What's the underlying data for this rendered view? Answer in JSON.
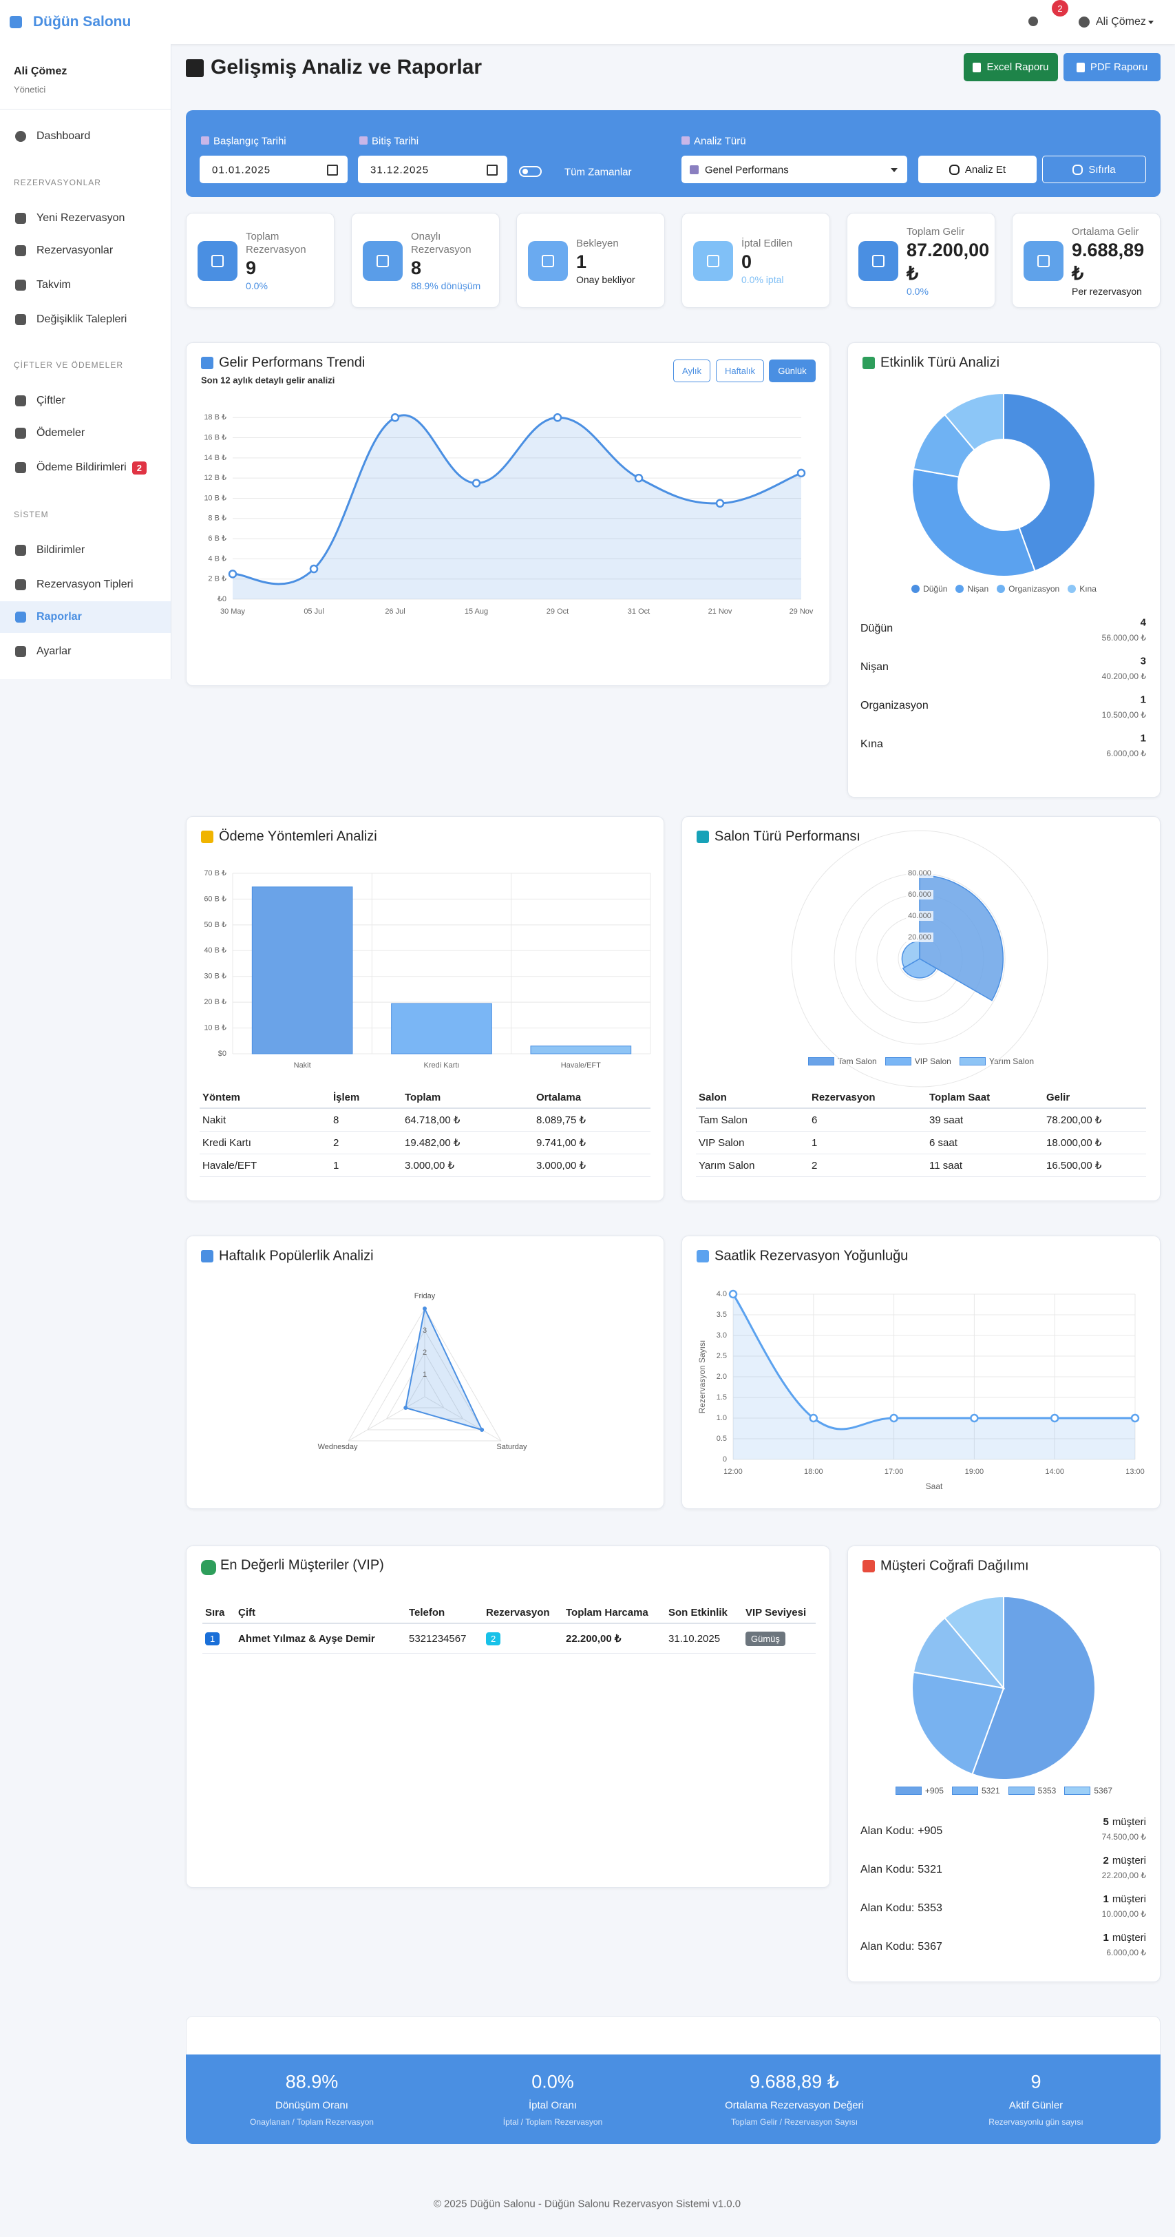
{
  "navbar": {
    "brand": "Düğün Salonu",
    "notifications": 2,
    "user": "Ali Çömez"
  },
  "sidebar": {
    "user_name": "Ali Çömez",
    "user_role": "Yönetici",
    "home": "Dashboard",
    "sections": [
      {
        "title": "REZERVASYONLAR",
        "items": [
          {
            "label": "Yeni Rezervasyon"
          },
          {
            "label": "Rezervasyonlar"
          },
          {
            "label": "Takvim"
          },
          {
            "label": "Değişiklik Talepleri"
          }
        ]
      },
      {
        "title": "ÇİFTLER VE ÖDEMELER",
        "items": [
          {
            "label": "Çiftler"
          },
          {
            "label": "Ödemeler"
          },
          {
            "label": "Ödeme Bildirimleri",
            "badge": 2
          }
        ]
      },
      {
        "title": "SİSTEM",
        "items": [
          {
            "label": "Bildirimler"
          },
          {
            "label": "Rezervasyon Tipleri"
          },
          {
            "label": "Raporlar",
            "active": true
          },
          {
            "label": "Ayarlar"
          }
        ]
      }
    ]
  },
  "header": {
    "title": "Gelişmiş Analiz ve Raporlar",
    "buttons": [
      "Excel Raporu",
      "PDF Raporu"
    ]
  },
  "filters": {
    "start_label": "Başlangıç Tarihi",
    "start": "01.01.2025",
    "end_label": "Bitiş Tarihi",
    "end": "31.12.2025",
    "all_time": "Tüm Zamanlar",
    "type_label": "Analiz Türü",
    "type": "Genel Performans",
    "analyze": "Analiz Et",
    "reset": "Sıfırla"
  },
  "stats": [
    {
      "label": "Toplam Rezervasyon",
      "value": 9,
      "note": "0.0%"
    },
    {
      "label": "Onaylı Rezervasyon",
      "value": 8,
      "note": "88.9% dönüşüm"
    },
    {
      "label": "Bekleyen",
      "value": 1,
      "note": "Onay bekliyor"
    },
    {
      "label": "İptal Edilen",
      "value": 0,
      "note": "0.0% iptal"
    },
    {
      "label": "Toplam Gelir",
      "value": "87.200,00 ₺",
      "note": "0.0%"
    },
    {
      "label": "Ortalama Gelir",
      "value": "9.688,89 ₺",
      "note": "Per rezervasyon"
    }
  ],
  "chart_data": [
    {
      "type": "line",
      "title": "Gelir Performans Trendi",
      "subtitle": "Son 12 aylık detaylı gelir analizi",
      "buttons": [
        "Aylık",
        "Haftalık",
        "Günlük"
      ],
      "active_button": 2,
      "categories": [
        "30 May",
        "05 Jul",
        "26 Jul",
        "15 Aug",
        "29 Oct",
        "31 Oct",
        "21 Nov",
        "29 Nov"
      ],
      "values": [
        2500,
        3000,
        18000,
        11500,
        18000,
        12000,
        9500,
        12500
      ],
      "color": "#4a8fe2",
      "fill": true,
      "ylim": [
        0,
        18700
      ],
      "yticks": [
        {
          "value": 0,
          "label": "₺0"
        },
        {
          "value": 2000,
          "label": "2 B ₺"
        },
        {
          "value": 4000,
          "label": "4 B ₺"
        },
        {
          "value": 6000,
          "label": "6 B ₺"
        },
        {
          "value": 8000,
          "label": "8 B ₺"
        },
        {
          "value": 10000,
          "label": "10 B ₺"
        },
        {
          "value": 12000,
          "label": "12 B ₺"
        },
        {
          "value": 14000,
          "label": "14 B ₺"
        },
        {
          "value": 16000,
          "label": "16 B ₺"
        },
        {
          "value": 18000,
          "label": "18 B ₺"
        }
      ],
      "grid": true,
      "xgrid": false
    },
    {
      "type": "doughnut",
      "title": "Etkinlik Türü Analizi",
      "categories": [
        "Düğün",
        "Nişan",
        "Organizasyon",
        "Kına"
      ],
      "values": [
        4,
        3,
        1,
        1
      ],
      "colors": [
        "#4a8fe2",
        "#5ba2ef",
        "#6fb2f3",
        "#8cc6f7"
      ],
      "revenue_labels": [
        "56.000,00 ₺",
        "40.200,00 ₺",
        "10.500,00 ₺",
        "6.000,00 ₺"
      ]
    },
    {
      "type": "bar",
      "title": "Ödeme Yöntemleri Analizi",
      "categories": [
        "Nakit",
        "Kredi Kartı",
        "Havale/EFT"
      ],
      "values": [
        64718,
        19482,
        3000
      ],
      "colors": [
        "#6aa3e8",
        "#7ab6f5",
        "#8ec4f5"
      ],
      "ylim": [
        0,
        70000
      ],
      "yticks": [
        {
          "value": 0,
          "label": "$0"
        },
        {
          "value": 10000,
          "label": "10 B ₺"
        },
        {
          "value": 20000,
          "label": "20 B ₺"
        },
        {
          "value": 30000,
          "label": "30 B ₺"
        },
        {
          "value": 40000,
          "label": "40 B ₺"
        },
        {
          "value": 50000,
          "label": "50 B ₺"
        },
        {
          "value": 60000,
          "label": "60 B ₺"
        },
        {
          "value": 70000,
          "label": "70 B ₺"
        }
      ],
      "grid": true,
      "table": {
        "headers": [
          "Yöntem",
          "İşlem",
          "Toplam",
          "Ortalama"
        ],
        "rows": [
          [
            "Nakit",
            "8",
            "64.718,00 ₺",
            "8.089,75 ₺"
          ],
          [
            "Kredi Kartı",
            "2",
            "19.482,00 ₺",
            "9.741,00 ₺"
          ],
          [
            "Havale/EFT",
            "1",
            "3.000,00 ₺",
            "3.000,00 ₺"
          ]
        ]
      }
    },
    {
      "type": "polar",
      "title": "Salon Türü Performansı",
      "categories": [
        "Tam Salon",
        "VIP Salon",
        "Yarım Salon"
      ],
      "values": [
        78200,
        18000,
        16500
      ],
      "colors": [
        "#6aa3e8",
        "#7ab6f5",
        "#8ec4f5"
      ],
      "rlim": [
        0,
        120000
      ],
      "rticks": [
        {
          "value": 20000,
          "label": "20.000"
        },
        {
          "value": 40000,
          "label": "40.000"
        },
        {
          "value": 60000,
          "label": "60.000"
        },
        {
          "value": 80000,
          "label": "80.000"
        }
      ],
      "table": {
        "headers": [
          "Salon",
          "Rezervasyon",
          "Toplam Saat",
          "Gelir"
        ],
        "rows": [
          [
            "Tam Salon",
            "6",
            "39 saat",
            "78.200,00 ₺"
          ],
          [
            "VIP Salon",
            "1",
            "6 saat",
            "18.000,00 ₺"
          ],
          [
            "Yarım Salon",
            "2",
            "11 saat",
            "16.500,00 ₺"
          ]
        ]
      }
    },
    {
      "type": "radar",
      "title": "Haftalık Popülerlik Analizi",
      "categories": [
        "Friday",
        "Saturday",
        "Wednesday"
      ],
      "values": [
        4,
        3,
        1
      ],
      "color": "#4a8fe2",
      "rlim": [
        0,
        4
      ],
      "rticks": [
        1,
        2,
        3
      ]
    },
    {
      "type": "line",
      "title": "Saatlik Rezervasyon Yoğunluğu",
      "xlabel": "Saat",
      "ylabel": "Rezervasyon Sayısı",
      "categories": [
        "12:00",
        "18:00",
        "17:00",
        "19:00",
        "14:00",
        "13:00"
      ],
      "values": [
        4,
        1,
        1,
        1,
        1,
        1
      ],
      "color": "#5ba2ef",
      "fill": true,
      "ylim": [
        0,
        4
      ],
      "yticks": [
        0,
        0.5,
        {
          "value": 1,
          "label": "1.0"
        },
        1.5,
        {
          "value": 2,
          "label": "2.0"
        },
        2.5,
        {
          "value": 3,
          "label": "3.0"
        },
        3.5,
        {
          "value": 4,
          "label": "4.0"
        }
      ],
      "grid": true,
      "xgrid": true
    },
    {
      "type": "pie",
      "title": "Müşteri Coğrafi Dağılımı",
      "categories": [
        "+905",
        "5321",
        "5353",
        "5367"
      ],
      "values": [
        5,
        2,
        1,
        1
      ],
      "colors": [
        "#6aa3e8",
        "#78b2f0",
        "#8cc1f3",
        "#9ccff7"
      ],
      "row_label": "Alan Kodu:",
      "unit": "müşteri",
      "revenue_labels": [
        "74.500,00 ₺",
        "22.200,00 ₺",
        "10.000,00 ₺",
        "6.000,00 ₺"
      ]
    }
  ],
  "vip": {
    "title": "En Değerli Müşteriler (VIP)",
    "headers": [
      "Sıra",
      "Çift",
      "Telefon",
      "Rezervasyon",
      "Toplam Harcama",
      "Son Etkinlik",
      "VIP Seviyesi"
    ],
    "rows": [
      [
        1,
        "Ahmet Yılmaz & Ayşe Demir",
        "5321234567",
        2,
        "22.200,00 ₺",
        "31.10.2025",
        "Gümüş"
      ]
    ]
  },
  "summary": [
    {
      "value": "88.9%",
      "label": "Dönüşüm Oranı",
      "note": "Onaylanan / Toplam Rezervasyon"
    },
    {
      "value": "0.0%",
      "label": "İptal Oranı",
      "note": "İptal / Toplam Rezervasyon"
    },
    {
      "value": "9.688,89 ₺",
      "label": "Ortalama Rezervasyon Değeri",
      "note": "Toplam Gelir / Rezervasyon Sayısı"
    },
    {
      "value": "9",
      "label": "Aktif Günler",
      "note": "Rezervasyonlu gün sayısı"
    }
  ],
  "footer": "© 2025 Düğün Salonu - Düğün Salonu Rezervasyon Sistemi v1.0.0"
}
